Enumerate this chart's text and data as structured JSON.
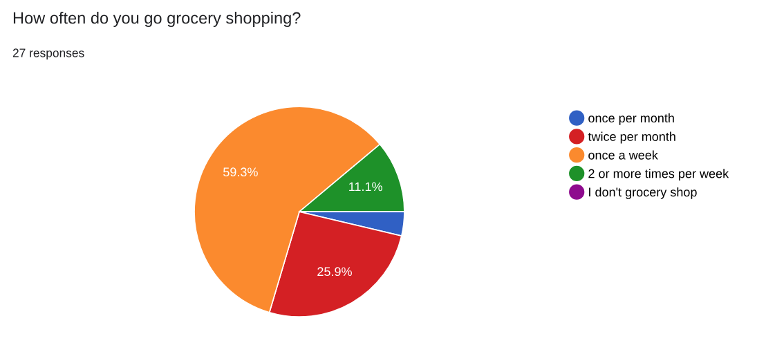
{
  "chart_data": {
    "type": "pie",
    "title": "How often do you go grocery shopping?",
    "subtitle": "27 responses",
    "categories": [
      "once per month",
      "twice per month",
      "once a week",
      "2 or more times per week",
      "I don't grocery shop"
    ],
    "values": [
      3.7,
      25.9,
      59.3,
      11.1,
      0
    ],
    "value_labels": [
      null,
      "25.9%",
      "59.3%",
      "11.1%",
      null
    ],
    "colors": [
      "#3060c4",
      "#d42024",
      "#fb8a2e",
      "#1e9129",
      "#8e0b8e"
    ],
    "legend": "right"
  }
}
